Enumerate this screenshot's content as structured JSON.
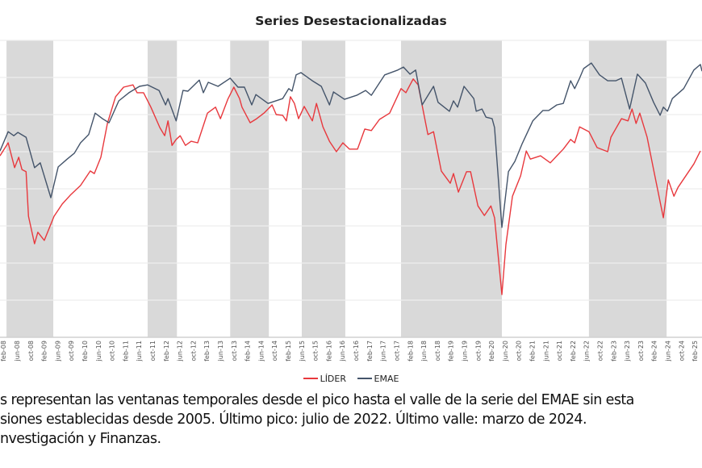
{
  "chart_data": {
    "type": "line",
    "title": "Series Desestacionalizadas",
    "xlabel": "",
    "ylabel": "",
    "xlim": [
      2008.0,
      2025.26
    ],
    "ylim": [
      0,
      8
    ],
    "y_tick_labels_visible": false,
    "grid": true,
    "legend_position": "bottom",
    "x_tick_labels": [
      "feb-08",
      "jun-08",
      "oct-08",
      "feb-09",
      "jun-09",
      "oct-09",
      "feb-10",
      "jun-10",
      "oct-10",
      "feb-11",
      "jun-11",
      "oct-11",
      "feb-12",
      "jun-12",
      "oct-12",
      "feb-13",
      "jun-13",
      "oct-13",
      "feb-14",
      "jun-14",
      "oct-14",
      "feb-15",
      "jun-15",
      "oct-15",
      "feb-16",
      "jun-16",
      "oct-16",
      "feb-17",
      "jun-17",
      "oct-17",
      "feb-18",
      "jun-18",
      "oct-18",
      "feb-19",
      "jun-19",
      "oct-19",
      "feb-20",
      "jun-20",
      "oct-20",
      "feb-21",
      "jun-21",
      "oct-21",
      "feb-22",
      "jun-22",
      "oct-22",
      "feb-23",
      "jun-23",
      "oct-23",
      "feb-24",
      "jun-24",
      "oct-24",
      "feb-25"
    ],
    "shaded_periods": [
      [
        2008.16,
        2009.31
      ],
      [
        2011.63,
        2012.35
      ],
      [
        2013.66,
        2014.61
      ],
      [
        2015.42,
        2016.49
      ],
      [
        2017.86,
        2020.34
      ],
      [
        2022.48,
        2024.39
      ]
    ],
    "shade_color": "#d9d9d9",
    "series": [
      {
        "name": "LÍDER",
        "color": "#e8383d",
        "points": [
          [
            2008.0,
            4.89
          ],
          [
            2008.2,
            5.24
          ],
          [
            2008.36,
            4.57
          ],
          [
            2008.46,
            4.85
          ],
          [
            2008.54,
            4.52
          ],
          [
            2008.64,
            4.46
          ],
          [
            2008.7,
            3.26
          ],
          [
            2008.85,
            2.52
          ],
          [
            2008.93,
            2.83
          ],
          [
            2009.09,
            2.61
          ],
          [
            2009.33,
            3.26
          ],
          [
            2009.53,
            3.59
          ],
          [
            2009.73,
            3.83
          ],
          [
            2009.98,
            4.09
          ],
          [
            2010.22,
            4.48
          ],
          [
            2010.32,
            4.41
          ],
          [
            2010.48,
            4.85
          ],
          [
            2010.64,
            5.76
          ],
          [
            2010.84,
            6.48
          ],
          [
            2011.04,
            6.74
          ],
          [
            2011.27,
            6.8
          ],
          [
            2011.37,
            6.59
          ],
          [
            2011.53,
            6.59
          ],
          [
            2011.71,
            6.2
          ],
          [
            2011.93,
            5.65
          ],
          [
            2012.05,
            5.43
          ],
          [
            2012.13,
            5.83
          ],
          [
            2012.23,
            5.17
          ],
          [
            2012.33,
            5.33
          ],
          [
            2012.43,
            5.43
          ],
          [
            2012.56,
            5.17
          ],
          [
            2012.7,
            5.28
          ],
          [
            2012.86,
            5.24
          ],
          [
            2013.1,
            6.04
          ],
          [
            2013.3,
            6.2
          ],
          [
            2013.42,
            5.89
          ],
          [
            2013.6,
            6.41
          ],
          [
            2013.75,
            6.74
          ],
          [
            2013.89,
            6.43
          ],
          [
            2013.95,
            6.2
          ],
          [
            2014.15,
            5.78
          ],
          [
            2014.31,
            5.89
          ],
          [
            2014.49,
            6.04
          ],
          [
            2014.69,
            6.26
          ],
          [
            2014.79,
            6.0
          ],
          [
            2014.95,
            5.98
          ],
          [
            2015.04,
            5.83
          ],
          [
            2015.14,
            6.48
          ],
          [
            2015.24,
            6.3
          ],
          [
            2015.34,
            5.89
          ],
          [
            2015.48,
            6.22
          ],
          [
            2015.68,
            5.83
          ],
          [
            2015.78,
            6.3
          ],
          [
            2015.94,
            5.67
          ],
          [
            2016.1,
            5.28
          ],
          [
            2016.27,
            5.0
          ],
          [
            2016.43,
            5.24
          ],
          [
            2016.59,
            5.07
          ],
          [
            2016.79,
            5.07
          ],
          [
            2016.97,
            5.61
          ],
          [
            2017.13,
            5.57
          ],
          [
            2017.33,
            5.87
          ],
          [
            2017.58,
            6.04
          ],
          [
            2017.86,
            6.7
          ],
          [
            2017.98,
            6.59
          ],
          [
            2018.16,
            6.96
          ],
          [
            2018.28,
            6.8
          ],
          [
            2018.52,
            5.46
          ],
          [
            2018.66,
            5.54
          ],
          [
            2018.85,
            4.48
          ],
          [
            2019.07,
            4.15
          ],
          [
            2019.15,
            4.41
          ],
          [
            2019.27,
            3.91
          ],
          [
            2019.47,
            4.46
          ],
          [
            2019.57,
            4.46
          ],
          [
            2019.75,
            3.54
          ],
          [
            2019.91,
            3.28
          ],
          [
            2020.07,
            3.54
          ],
          [
            2020.16,
            3.22
          ],
          [
            2020.34,
            1.15
          ],
          [
            2020.44,
            2.5
          ],
          [
            2020.6,
            3.8
          ],
          [
            2020.8,
            4.35
          ],
          [
            2020.94,
            5.02
          ],
          [
            2021.04,
            4.8
          ],
          [
            2021.29,
            4.89
          ],
          [
            2021.53,
            4.7
          ],
          [
            2021.69,
            4.89
          ],
          [
            2021.85,
            5.07
          ],
          [
            2022.03,
            5.33
          ],
          [
            2022.13,
            5.24
          ],
          [
            2022.25,
            5.67
          ],
          [
            2022.48,
            5.54
          ],
          [
            2022.68,
            5.11
          ],
          [
            2022.94,
            5.0
          ],
          [
            2023.02,
            5.39
          ],
          [
            2023.28,
            5.89
          ],
          [
            2023.44,
            5.83
          ],
          [
            2023.54,
            6.15
          ],
          [
            2023.64,
            5.76
          ],
          [
            2023.73,
            6.04
          ],
          [
            2023.91,
            5.39
          ],
          [
            2024.07,
            4.52
          ],
          [
            2024.31,
            3.22
          ],
          [
            2024.43,
            4.24
          ],
          [
            2024.57,
            3.8
          ],
          [
            2024.67,
            4.04
          ],
          [
            2025.06,
            4.67
          ],
          [
            2025.22,
            5.02
          ]
        ]
      },
      {
        "name": "EMAE",
        "color": "#44546a",
        "points": [
          [
            2008.0,
            5.02
          ],
          [
            2008.2,
            5.54
          ],
          [
            2008.34,
            5.43
          ],
          [
            2008.44,
            5.52
          ],
          [
            2008.64,
            5.39
          ],
          [
            2008.85,
            4.57
          ],
          [
            2008.99,
            4.7
          ],
          [
            2009.25,
            3.76
          ],
          [
            2009.43,
            4.59
          ],
          [
            2009.65,
            4.8
          ],
          [
            2009.83,
            4.96
          ],
          [
            2009.98,
            5.24
          ],
          [
            2010.18,
            5.46
          ],
          [
            2010.34,
            6.04
          ],
          [
            2010.52,
            5.89
          ],
          [
            2010.68,
            5.78
          ],
          [
            2010.92,
            6.37
          ],
          [
            2011.17,
            6.59
          ],
          [
            2011.43,
            6.76
          ],
          [
            2011.63,
            6.8
          ],
          [
            2011.91,
            6.65
          ],
          [
            2012.07,
            6.26
          ],
          [
            2012.13,
            6.43
          ],
          [
            2012.33,
            5.83
          ],
          [
            2012.5,
            6.65
          ],
          [
            2012.62,
            6.63
          ],
          [
            2012.9,
            6.93
          ],
          [
            2013.0,
            6.59
          ],
          [
            2013.12,
            6.87
          ],
          [
            2013.36,
            6.76
          ],
          [
            2013.66,
            6.98
          ],
          [
            2013.85,
            6.74
          ],
          [
            2014.01,
            6.74
          ],
          [
            2014.19,
            6.26
          ],
          [
            2014.29,
            6.54
          ],
          [
            2014.59,
            6.3
          ],
          [
            2014.95,
            6.43
          ],
          [
            2015.1,
            6.7
          ],
          [
            2015.18,
            6.63
          ],
          [
            2015.28,
            7.07
          ],
          [
            2015.4,
            7.13
          ],
          [
            2015.68,
            6.91
          ],
          [
            2015.9,
            6.76
          ],
          [
            2016.1,
            6.26
          ],
          [
            2016.2,
            6.61
          ],
          [
            2016.47,
            6.41
          ],
          [
            2016.77,
            6.52
          ],
          [
            2016.99,
            6.65
          ],
          [
            2017.13,
            6.52
          ],
          [
            2017.46,
            7.07
          ],
          [
            2017.78,
            7.2
          ],
          [
            2017.92,
            7.28
          ],
          [
            2018.08,
            7.09
          ],
          [
            2018.22,
            7.2
          ],
          [
            2018.38,
            6.26
          ],
          [
            2018.66,
            6.76
          ],
          [
            2018.77,
            6.33
          ],
          [
            2019.05,
            6.09
          ],
          [
            2019.15,
            6.37
          ],
          [
            2019.25,
            6.2
          ],
          [
            2019.41,
            6.76
          ],
          [
            2019.65,
            6.43
          ],
          [
            2019.71,
            6.09
          ],
          [
            2019.85,
            6.15
          ],
          [
            2019.95,
            5.93
          ],
          [
            2020.1,
            5.89
          ],
          [
            2020.16,
            5.65
          ],
          [
            2020.34,
            2.96
          ],
          [
            2020.5,
            4.46
          ],
          [
            2020.66,
            4.74
          ],
          [
            2020.84,
            5.22
          ],
          [
            2021.1,
            5.83
          ],
          [
            2021.35,
            6.11
          ],
          [
            2021.49,
            6.11
          ],
          [
            2021.69,
            6.26
          ],
          [
            2021.85,
            6.3
          ],
          [
            2022.03,
            6.91
          ],
          [
            2022.13,
            6.7
          ],
          [
            2022.25,
            6.98
          ],
          [
            2022.35,
            7.24
          ],
          [
            2022.54,
            7.39
          ],
          [
            2022.74,
            7.07
          ],
          [
            2022.94,
            6.91
          ],
          [
            2023.14,
            6.91
          ],
          [
            2023.28,
            6.98
          ],
          [
            2023.48,
            6.15
          ],
          [
            2023.67,
            7.09
          ],
          [
            2023.87,
            6.85
          ],
          [
            2024.07,
            6.33
          ],
          [
            2024.23,
            5.98
          ],
          [
            2024.31,
            6.2
          ],
          [
            2024.41,
            6.09
          ],
          [
            2024.53,
            6.43
          ],
          [
            2024.81,
            6.7
          ],
          [
            2025.06,
            7.2
          ],
          [
            2025.22,
            7.35
          ],
          [
            2025.26,
            7.17
          ]
        ]
      }
    ]
  },
  "legend": {
    "items": [
      {
        "label": "LÍDER",
        "color": "#e8383d"
      },
      {
        "label": "EMAE",
        "color": "#44546a"
      }
    ]
  },
  "footnote": {
    "line1": "s representan las ventanas temporales desde el pico hasta el valle de la serie del EMAE sin esta",
    "line2": "siones establecidas desde 2005. Último pico: julio de 2022. Último valle: marzo de 2024.",
    "line3": "nvestigación y Finanzas."
  }
}
